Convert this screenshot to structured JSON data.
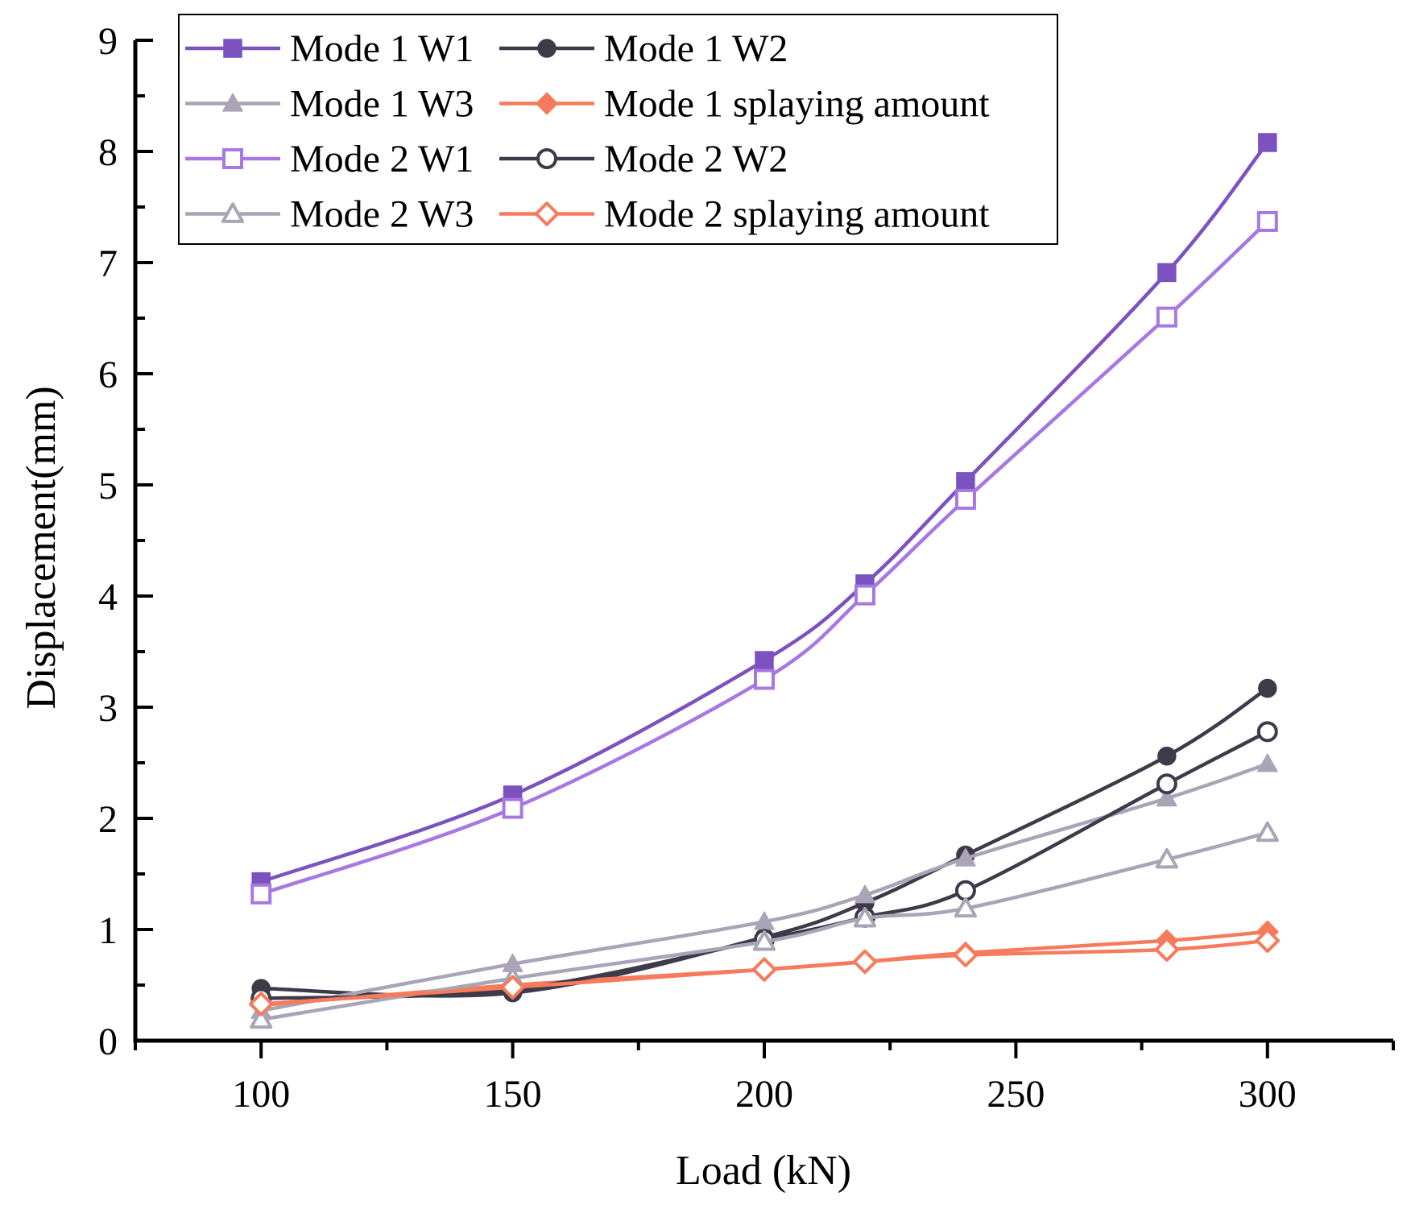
{
  "chart_data": {
    "type": "line",
    "title": "",
    "xlabel": "Load (kN)",
    "ylabel": "Displacement(mm)",
    "xlim": [
      75,
      325
    ],
    "ylim": [
      0,
      9
    ],
    "xticks": [
      100,
      150,
      200,
      250,
      300
    ],
    "yticks": [
      0,
      1,
      2,
      3,
      4,
      5,
      6,
      7,
      8,
      9
    ],
    "legend_position": "top-left",
    "x": [
      100,
      150,
      200,
      220,
      240,
      280,
      300
    ],
    "series": [
      {
        "name": "Mode 1 W1",
        "color": "#7b52c0",
        "marker": "square",
        "filled": true,
        "values": [
          1.43,
          2.21,
          3.42,
          4.11,
          5.03,
          6.91,
          8.08
        ]
      },
      {
        "name": "Mode 1 W2",
        "color": "#3e3a4a",
        "marker": "circle",
        "filled": true,
        "values": [
          0.47,
          0.43,
          0.93,
          1.24,
          1.67,
          2.56,
          3.17
        ]
      },
      {
        "name": "Mode 1 W3",
        "color": "#a9a4b6",
        "marker": "triangle",
        "filled": true,
        "values": [
          0.27,
          0.69,
          1.07,
          1.31,
          1.64,
          2.18,
          2.49
        ]
      },
      {
        "name": "Mode 1 splaying amount",
        "color": "#f57b5c",
        "marker": "diamond",
        "filled": true,
        "values": [
          0.32,
          0.5,
          0.64,
          0.71,
          0.79,
          0.9,
          0.98
        ]
      },
      {
        "name": "Mode 2 W1",
        "color": "#a878e2",
        "marker": "square",
        "filled": false,
        "values": [
          1.32,
          2.09,
          3.25,
          4.01,
          4.87,
          6.51,
          7.37
        ]
      },
      {
        "name": "Mode 2 W2",
        "color": "#3e3a4a",
        "marker": "circle",
        "filled": false,
        "values": [
          0.38,
          0.46,
          0.91,
          1.11,
          1.35,
          2.31,
          2.78
        ]
      },
      {
        "name": "Mode 2 W3",
        "color": "#a9a4b6",
        "marker": "triangle",
        "filled": false,
        "values": [
          0.19,
          0.56,
          0.89,
          1.1,
          1.19,
          1.63,
          1.87
        ]
      },
      {
        "name": "Mode 2 splaying amount",
        "color": "#f57b5c",
        "marker": "diamond",
        "filled": false,
        "values": [
          0.33,
          0.48,
          0.64,
          0.71,
          0.77,
          0.82,
          0.9
        ]
      }
    ],
    "legend_order": [
      0,
      1,
      2,
      3,
      4,
      5,
      6,
      7
    ]
  }
}
